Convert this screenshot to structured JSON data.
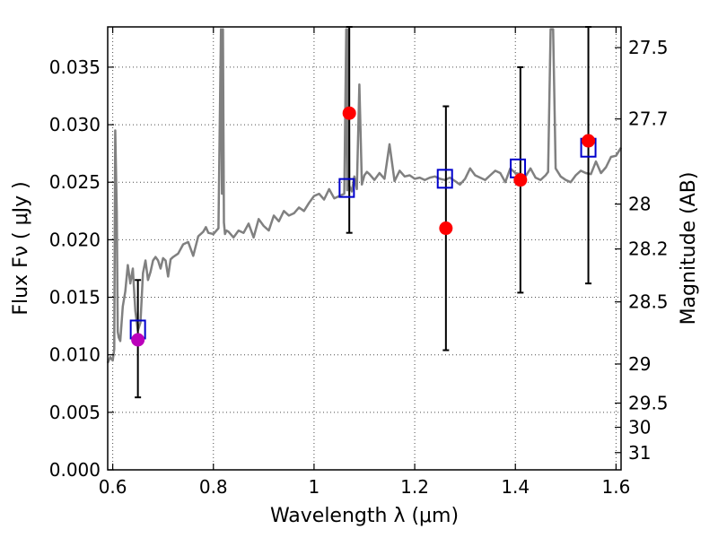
{
  "chart_data": {
    "type": "scatter",
    "xlabel": "Wavelength  λ (μm)",
    "ylabel": "Flux  Fν  ( μJy )",
    "ylabel_right": "Magnitude (AB)",
    "xlim": [
      0.59,
      1.61
    ],
    "ylim": [
      0.0,
      0.0385
    ],
    "x_ticks": [
      0.6,
      0.8,
      1.0,
      1.2,
      1.4,
      1.6
    ],
    "x_tick_labels": [
      "0.6",
      "0.8",
      "1",
      "1.2",
      "1.4",
      "1.6"
    ],
    "y_ticks": [
      0.0,
      0.005,
      0.01,
      0.015,
      0.02,
      0.025,
      0.03,
      0.035
    ],
    "y_tick_labels": [
      "0.000",
      "0.005",
      "0.010",
      "0.015",
      "0.020",
      "0.025",
      "0.030",
      "0.035"
    ],
    "right_ticks": [
      {
        "label": "27.5",
        "flux": 0.0367
      },
      {
        "label": "27.7",
        "flux": 0.0305
      },
      {
        "label": "28",
        "flux": 0.0231
      },
      {
        "label": "28.2",
        "flux": 0.0192
      },
      {
        "label": "28.5",
        "flux": 0.0146
      },
      {
        "label": "29",
        "flux": 0.0092
      },
      {
        "label": "29.5",
        "flux": 0.0058
      },
      {
        "label": "30",
        "flux": 0.0037
      },
      {
        "label": "31",
        "flux": 0.0015
      }
    ],
    "grid": true,
    "colors": {
      "spectrum": "#808080",
      "model": "#0000cc",
      "observed": "#ff0000",
      "observed_first": "#bb00bb",
      "errorbar": "#000000"
    },
    "spectrum": {
      "x": [
        0.59,
        0.595,
        0.6,
        0.603,
        0.605,
        0.608,
        0.61,
        0.612,
        0.615,
        0.62,
        0.625,
        0.63,
        0.635,
        0.64,
        0.645,
        0.65,
        0.655,
        0.66,
        0.665,
        0.67,
        0.675,
        0.68,
        0.685,
        0.69,
        0.695,
        0.7,
        0.705,
        0.71,
        0.715,
        0.72,
        0.73,
        0.74,
        0.75,
        0.76,
        0.77,
        0.78,
        0.785,
        0.79,
        0.8,
        0.81,
        0.815,
        0.817,
        0.819,
        0.821,
        0.823,
        0.826,
        0.83,
        0.84,
        0.85,
        0.86,
        0.87,
        0.88,
        0.89,
        0.9,
        0.91,
        0.92,
        0.93,
        0.94,
        0.95,
        0.96,
        0.97,
        0.98,
        0.99,
        1.0,
        1.01,
        1.02,
        1.03,
        1.04,
        1.05,
        1.06,
        1.064,
        1.066,
        1.068,
        1.07,
        1.075,
        1.08,
        1.085,
        1.09,
        1.095,
        1.1,
        1.105,
        1.11,
        1.12,
        1.13,
        1.14,
        1.15,
        1.16,
        1.17,
        1.18,
        1.19,
        1.2,
        1.21,
        1.22,
        1.23,
        1.24,
        1.25,
        1.26,
        1.27,
        1.28,
        1.29,
        1.3,
        1.31,
        1.32,
        1.33,
        1.34,
        1.35,
        1.36,
        1.37,
        1.38,
        1.39,
        1.4,
        1.41,
        1.42,
        1.43,
        1.44,
        1.45,
        1.46,
        1.465,
        1.47,
        1.475,
        1.48,
        1.49,
        1.5,
        1.51,
        1.52,
        1.53,
        1.54,
        1.55,
        1.56,
        1.57,
        1.58,
        1.59,
        1.6,
        1.61
      ],
      "y": [
        0.0093,
        0.0098,
        0.0095,
        0.0105,
        0.0295,
        0.0225,
        0.012,
        0.0115,
        0.0112,
        0.0142,
        0.0155,
        0.0178,
        0.0162,
        0.0175,
        0.0138,
        0.0121,
        0.0128,
        0.0171,
        0.0182,
        0.0165,
        0.0172,
        0.0182,
        0.0185,
        0.0182,
        0.0175,
        0.0184,
        0.0182,
        0.0168,
        0.0183,
        0.0185,
        0.0188,
        0.0196,
        0.0198,
        0.0186,
        0.0203,
        0.0207,
        0.0211,
        0.0206,
        0.0205,
        0.021,
        0.0383,
        0.024,
        0.0383,
        0.0215,
        0.0205,
        0.0208,
        0.0207,
        0.0202,
        0.0208,
        0.0206,
        0.0214,
        0.0202,
        0.0218,
        0.0212,
        0.0208,
        0.0221,
        0.0216,
        0.0225,
        0.0221,
        0.0223,
        0.0228,
        0.0225,
        0.0232,
        0.0238,
        0.024,
        0.0235,
        0.0244,
        0.0236,
        0.0238,
        0.024,
        0.0383,
        0.0243,
        0.0383,
        0.0247,
        0.0242,
        0.0255,
        0.0244,
        0.0335,
        0.0248,
        0.0256,
        0.0259,
        0.0257,
        0.0252,
        0.0258,
        0.0253,
        0.0283,
        0.0251,
        0.026,
        0.0255,
        0.0256,
        0.0253,
        0.0254,
        0.0252,
        0.0254,
        0.0255,
        0.0253,
        0.0252,
        0.0254,
        0.0251,
        0.0248,
        0.0253,
        0.0262,
        0.0256,
        0.0254,
        0.0252,
        0.0256,
        0.026,
        0.0258,
        0.025,
        0.0262,
        0.0258,
        0.0257,
        0.0255,
        0.0262,
        0.0254,
        0.0252,
        0.0256,
        0.0259,
        0.0383,
        0.0383,
        0.0262,
        0.0255,
        0.0252,
        0.025,
        0.0256,
        0.026,
        0.0258,
        0.0257,
        0.0268,
        0.0258,
        0.0263,
        0.0272,
        0.0273,
        0.028
      ]
    },
    "model_points": [
      {
        "x": 0.65,
        "y": 0.0122
      },
      {
        "x": 1.065,
        "y": 0.0245
      },
      {
        "x": 1.26,
        "y": 0.0253
      },
      {
        "x": 1.405,
        "y": 0.0262
      },
      {
        "x": 1.545,
        "y": 0.028
      }
    ],
    "observed_points": [
      {
        "x": 0.65,
        "y": 0.0113,
        "yerr_low": 0.0063,
        "yerr_high": 0.0165
      },
      {
        "x": 1.07,
        "y": 0.031,
        "yerr_low": 0.0206,
        "yerr_high": 0.0385
      },
      {
        "x": 1.262,
        "y": 0.021,
        "yerr_low": 0.0104,
        "yerr_high": 0.0316
      },
      {
        "x": 1.41,
        "y": 0.0252,
        "yerr_low": 0.0154,
        "yerr_high": 0.035
      },
      {
        "x": 1.545,
        "y": 0.0286,
        "yerr_low": 0.0162,
        "yerr_high": 0.0385
      }
    ]
  }
}
